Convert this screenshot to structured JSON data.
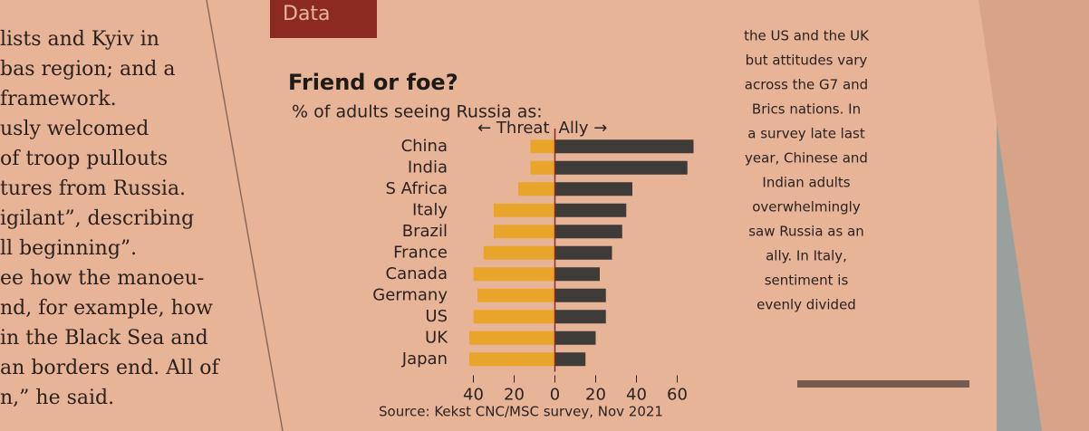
{
  "header": {
    "label": "Data"
  },
  "left_column": {
    "lines": [
      "lists and Kyiv in",
      "bas region; and a",
      "framework.",
      "usly  welcomed",
      "of troop pullouts",
      "tures from Russia.",
      "igilant”, describing",
      "ll beginning”.",
      "ee how the manoeu-",
      "nd, for example, how",
      "in the Black Sea and",
      "an borders end. All of",
      "n,” he said."
    ]
  },
  "right_column": {
    "lines": [
      "the US and the UK",
      "but attitudes vary",
      "across the G7 and",
      "Brics nations. In",
      "a survey late last",
      "year, Chinese and",
      "Indian adults",
      "overwhelmingly",
      "saw Russia as an",
      "ally. In Italy,",
      "sentiment is",
      "evenly divided"
    ]
  },
  "chart_data": {
    "type": "diverging_bar",
    "title": "Friend or foe?",
    "subtitle": "% of adults seeing Russia as:",
    "source": "Source: Kekst CNC/MSC survey, Nov 2021",
    "categories": [
      "China",
      "India",
      "S Africa",
      "Italy",
      "Brazil",
      "France",
      "Canada",
      "Germany",
      "US",
      "UK",
      "Japan"
    ],
    "series": [
      {
        "name": "← Threat",
        "color": "#e9a52b",
        "values": [
          -12,
          -12,
          -18,
          -30,
          -30,
          -35,
          -40,
          -38,
          -40,
          -42,
          -42
        ]
      },
      {
        "name": "Ally →",
        "color": "#3e3b39",
        "values": [
          68,
          65,
          38,
          35,
          33,
          28,
          22,
          25,
          25,
          20,
          15
        ]
      }
    ],
    "xlim": [
      -50,
      70
    ],
    "xticks": [
      {
        "value": -40,
        "label": "40"
      },
      {
        "value": -20,
        "label": "20"
      },
      0,
      20,
      40,
      60
    ]
  }
}
